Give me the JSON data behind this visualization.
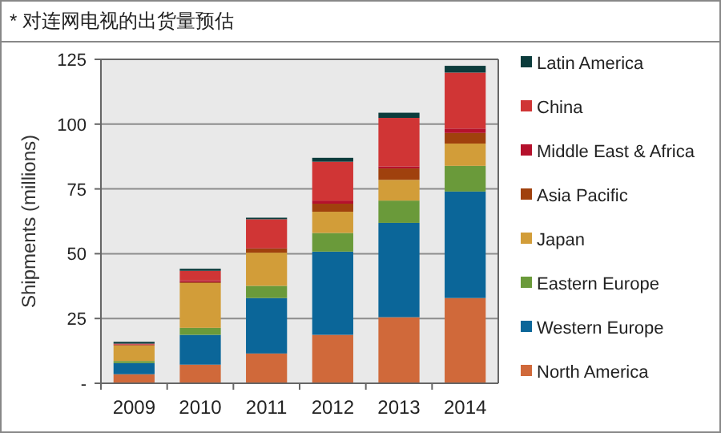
{
  "chart_data": {
    "type": "bar",
    "stacked": true,
    "title": "* 对连网电视的出货量预估",
    "ylabel": "Shipments  (millions)",
    "categories": [
      "2009",
      "2010",
      "2011",
      "2012",
      "2013",
      "2014"
    ],
    "series": [
      {
        "name": "North America",
        "color": "#d0693a",
        "values": [
          3.5,
          7.2,
          11.5,
          18.7,
          25.5,
          32.9
        ]
      },
      {
        "name": "Western Europe",
        "color": "#0b6699",
        "values": [
          4.3,
          11.5,
          21.4,
          32.1,
          36.4,
          41.1
        ]
      },
      {
        "name": "Eastern Europe",
        "color": "#6a9a3a",
        "values": [
          0.8,
          2.7,
          4.7,
          7.2,
          8.6,
          9.9
        ]
      },
      {
        "name": "Japan",
        "color": "#d29d39",
        "values": [
          6,
          17.3,
          12.8,
          8.2,
          8,
          8.6
        ]
      },
      {
        "name": "Asia Pacific",
        "color": "#a0410d",
        "values": [
          0.2,
          0.4,
          1.6,
          3.1,
          4.4,
          4.1
        ]
      },
      {
        "name": "Middle East & Africa",
        "color": "#b5112c",
        "values": [
          0.2,
          0.6,
          0.2,
          1.2,
          0.8,
          1.7
        ]
      },
      {
        "name": "China",
        "color": "#d03535",
        "values": [
          0.3,
          3.7,
          11.1,
          15,
          18.7,
          21.6
        ]
      },
      {
        "name": "Latin America",
        "color": "#0c3c3c",
        "values": [
          0.7,
          0.8,
          0.6,
          1.5,
          2,
          2.6
        ]
      }
    ],
    "ylim": [
      0,
      125
    ],
    "yticks": [
      {
        "value": 0,
        "label": "-"
      },
      25,
      50,
      75,
      100,
      125
    ],
    "grid": "y",
    "legend": "right"
  }
}
